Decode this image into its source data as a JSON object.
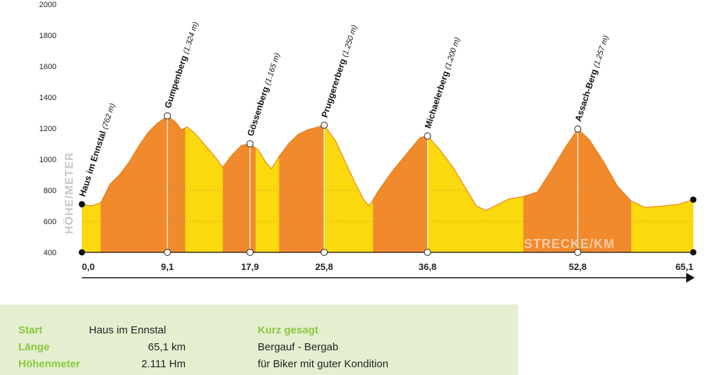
{
  "chart_data": {
    "type": "area",
    "ylabel": "HÖHE/METER",
    "xlabel": "STRECKE/KM",
    "ylim": [
      400,
      2000
    ],
    "yticks": [
      400,
      600,
      800,
      1000,
      1200,
      1400,
      1600,
      1800,
      2000
    ],
    "xticks": [
      "0,0",
      "9,1",
      "17,9",
      "25,8",
      "36,8",
      "52,8",
      "65,1"
    ],
    "xlim": [
      0,
      65.1
    ],
    "colors": {
      "uphill": "#f08a2c",
      "downhill": "#fcd80f"
    },
    "profile": [
      {
        "x": 0,
        "y": 710
      },
      {
        "x": 1.0,
        "y": 700
      },
      {
        "x": 2.0,
        "y": 720
      },
      {
        "x": 3.0,
        "y": 840
      },
      {
        "x": 4.0,
        "y": 900
      },
      {
        "x": 5.0,
        "y": 980
      },
      {
        "x": 6.0,
        "y": 1080
      },
      {
        "x": 7.0,
        "y": 1170
      },
      {
        "x": 8.0,
        "y": 1230
      },
      {
        "x": 9.1,
        "y": 1280
      },
      {
        "x": 10.0,
        "y": 1240
      },
      {
        "x": 10.6,
        "y": 1190
      },
      {
        "x": 11.2,
        "y": 1210
      },
      {
        "x": 12.0,
        "y": 1170
      },
      {
        "x": 13.0,
        "y": 1100
      },
      {
        "x": 14.0,
        "y": 1030
      },
      {
        "x": 15.0,
        "y": 950
      },
      {
        "x": 16.0,
        "y": 1030
      },
      {
        "x": 17.0,
        "y": 1090
      },
      {
        "x": 17.9,
        "y": 1100
      },
      {
        "x": 18.8,
        "y": 1060
      },
      {
        "x": 19.6,
        "y": 980
      },
      {
        "x": 20.2,
        "y": 940
      },
      {
        "x": 21.0,
        "y": 1020
      },
      {
        "x": 22.0,
        "y": 1100
      },
      {
        "x": 23.0,
        "y": 1160
      },
      {
        "x": 24.0,
        "y": 1190
      },
      {
        "x": 25.8,
        "y": 1220
      },
      {
        "x": 27.0,
        "y": 1120
      },
      {
        "x": 28.0,
        "y": 990
      },
      {
        "x": 29.0,
        "y": 860
      },
      {
        "x": 30.0,
        "y": 740
      },
      {
        "x": 30.6,
        "y": 700
      },
      {
        "x": 31.5,
        "y": 790
      },
      {
        "x": 33.0,
        "y": 920
      },
      {
        "x": 34.5,
        "y": 1030
      },
      {
        "x": 36.0,
        "y": 1140
      },
      {
        "x": 36.8,
        "y": 1150
      },
      {
        "x": 38.0,
        "y": 1070
      },
      {
        "x": 39.5,
        "y": 950
      },
      {
        "x": 41.0,
        "y": 800
      },
      {
        "x": 42.0,
        "y": 700
      },
      {
        "x": 43.0,
        "y": 670
      },
      {
        "x": 44.0,
        "y": 700
      },
      {
        "x": 45.5,
        "y": 745
      },
      {
        "x": 47.0,
        "y": 760
      },
      {
        "x": 48.5,
        "y": 790
      },
      {
        "x": 50.0,
        "y": 930
      },
      {
        "x": 51.5,
        "y": 1080
      },
      {
        "x": 52.8,
        "y": 1195
      },
      {
        "x": 54.0,
        "y": 1130
      },
      {
        "x": 55.5,
        "y": 990
      },
      {
        "x": 57.0,
        "y": 830
      },
      {
        "x": 58.5,
        "y": 730
      },
      {
        "x": 60.0,
        "y": 690
      },
      {
        "x": 62.0,
        "y": 700
      },
      {
        "x": 63.5,
        "y": 710
      },
      {
        "x": 65.1,
        "y": 740
      }
    ],
    "segments": [
      {
        "from": 0,
        "to": 2.0,
        "kind": "downhill"
      },
      {
        "from": 2.0,
        "to": 11.0,
        "kind": "uphill"
      },
      {
        "from": 11.0,
        "to": 15.0,
        "kind": "downhill"
      },
      {
        "from": 15.0,
        "to": 18.5,
        "kind": "uphill"
      },
      {
        "from": 18.5,
        "to": 21.0,
        "kind": "downhill"
      },
      {
        "from": 21.0,
        "to": 25.8,
        "kind": "uphill"
      },
      {
        "from": 25.8,
        "to": 31.0,
        "kind": "downhill"
      },
      {
        "from": 31.0,
        "to": 36.8,
        "kind": "uphill"
      },
      {
        "from": 36.8,
        "to": 47.0,
        "kind": "downhill"
      },
      {
        "from": 47.0,
        "to": 58.5,
        "kind": "uphill"
      },
      {
        "from": 58.5,
        "to": 65.1,
        "kind": "downhill"
      }
    ],
    "peaks": [
      {
        "name": "Haus im Ennstal",
        "height": "(762 m)",
        "x": 0,
        "y": 710
      },
      {
        "name": "Gumpenberg",
        "height": "(1.324 m)",
        "x": 9.1,
        "y": 1280
      },
      {
        "name": "Gössenberg",
        "height": "(1.165 m)",
        "x": 17.9,
        "y": 1100
      },
      {
        "name": "Pruggererberg",
        "height": "(1.250 m)",
        "x": 25.8,
        "y": 1220
      },
      {
        "name": "Michaelerberg",
        "height": "(1.200 m)",
        "x": 36.8,
        "y": 1150
      },
      {
        "name": "Assach-Berg",
        "height": "(1.257 m)",
        "x": 52.8,
        "y": 1195
      }
    ]
  },
  "info": {
    "start_label": "Start",
    "start_value": "Haus im Ennstal",
    "length_label": "Länge",
    "length_value": "65,1 km",
    "elev_label": "Höhenmeter",
    "elev_value": "2.111 Hm",
    "summary_label": "Kurz gesagt",
    "summary_line1": "Bergauf - Bergab",
    "summary_line2": "für Biker mit guter Kondition"
  }
}
